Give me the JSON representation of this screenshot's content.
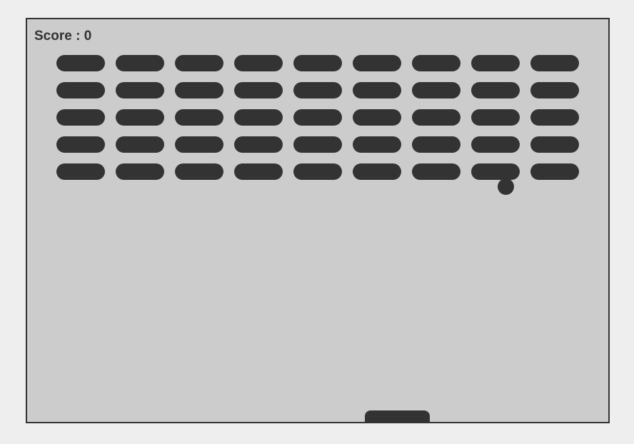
{
  "score": {
    "label": "Score",
    "separator": " : ",
    "value": "0"
  },
  "bricks": {
    "rows": 5,
    "columns": 9
  },
  "colors": {
    "background": "#eeeeee",
    "board": "#cccccc",
    "foreground": "#333333"
  }
}
